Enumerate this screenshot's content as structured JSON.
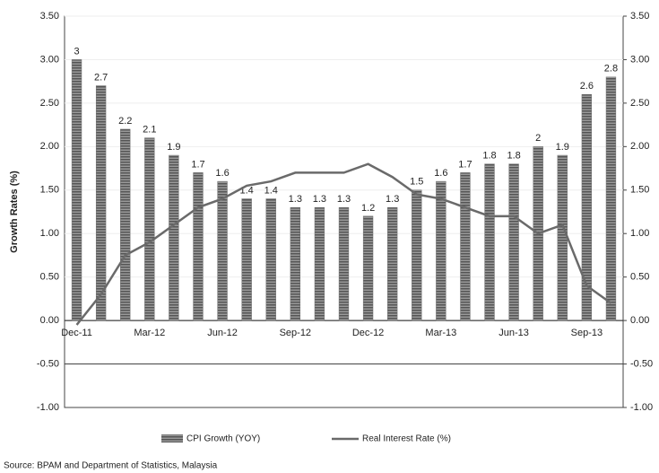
{
  "chart_data": {
    "type": "bar_line",
    "y_label": "Growth Rates (%)",
    "source": "Source: BPAM and Department of Statistics, Malaysia",
    "categories": [
      "Dec-11",
      null,
      null,
      "Mar-12",
      null,
      null,
      "Jun-12",
      null,
      null,
      "Sep-12",
      null,
      null,
      "Dec-12",
      null,
      null,
      "Mar-13",
      null,
      null,
      "Jun-13",
      null,
      null,
      "Sep-13",
      null
    ],
    "series": [
      {
        "name": "CPI Growth (YOY)",
        "type": "bar",
        "color": "#6e6e6e",
        "values": [
          3,
          2.7,
          2.2,
          2.1,
          1.9,
          1.7,
          1.6,
          1.4,
          1.4,
          1.3,
          1.3,
          1.3,
          1.2,
          1.3,
          1.5,
          1.6,
          1.7,
          1.8,
          1.8,
          2,
          1.9,
          2.6,
          2.8
        ]
      },
      {
        "name": "Real Interest Rate (%)",
        "type": "line",
        "axis": "y2",
        "color": "#6a6a6a",
        "values": [
          -0.05,
          0.3,
          0.75,
          0.9,
          1.1,
          1.3,
          1.4,
          1.55,
          1.6,
          1.7,
          1.7,
          1.7,
          1.8,
          1.65,
          1.45,
          1.4,
          1.3,
          1.2,
          1.2,
          1.0,
          1.1,
          0.4,
          0.2
        ]
      }
    ],
    "ylim": [
      -1,
      3.5
    ],
    "yticks": [
      {
        "value": -1,
        "label": "-1.00"
      },
      {
        "value": -0.5,
        "label": "-0.50"
      },
      {
        "value": 0,
        "label": "0.00"
      },
      {
        "value": 0.5,
        "label": "0.50"
      },
      {
        "value": 1,
        "label": "1.00"
      },
      {
        "value": 1.5,
        "label": "1.50"
      },
      {
        "value": 2,
        "label": "2.00"
      },
      {
        "value": 2.5,
        "label": "2.50"
      },
      {
        "value": 3,
        "label": "3.00"
      },
      {
        "value": 3.5,
        "label": "3.50"
      }
    ],
    "y2lim": [
      -1,
      3.5
    ],
    "y2ticks": [
      {
        "value": -1,
        "label": "-1.00"
      },
      {
        "value": -0.5,
        "label": "-0.50"
      },
      {
        "value": 0,
        "label": "0.00"
      },
      {
        "value": 0.5,
        "label": "0.50"
      },
      {
        "value": 1,
        "label": "1.00"
      },
      {
        "value": 1.5,
        "label": "1.50"
      },
      {
        "value": 2,
        "label": "2.00"
      },
      {
        "value": 2.5,
        "label": "2.50"
      },
      {
        "value": 3,
        "label": "3.00"
      },
      {
        "value": 3.5,
        "label": "3.50"
      }
    ],
    "grid": true
  }
}
